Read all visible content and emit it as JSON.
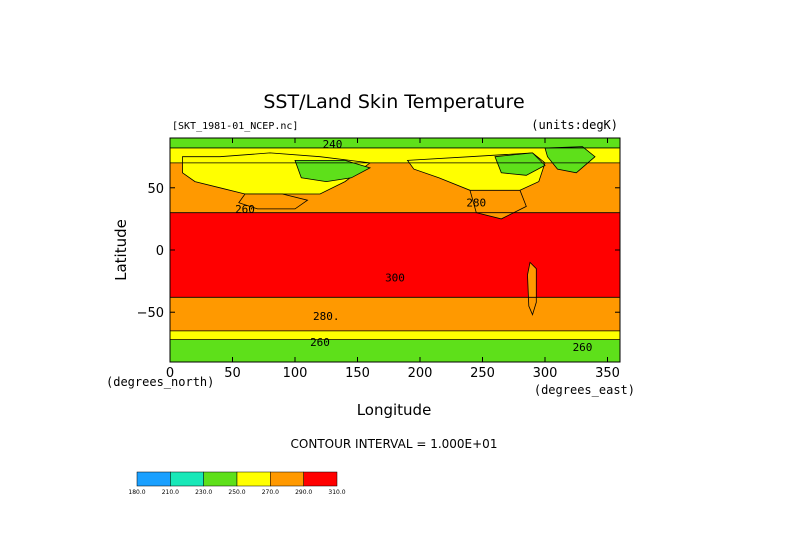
{
  "chart_data": {
    "type": "heatmap",
    "title": "SST/Land Skin Temperature",
    "file_label": "[SKT_1981-01_NCEP.nc]",
    "units_label": "(units:degK)",
    "xlabel": "Longitude",
    "ylabel": "Latitude",
    "x_unit_label": "(degrees_east)",
    "y_unit_label": "(degrees_north)",
    "xlim": [
      0,
      360
    ],
    "ylim": [
      -90,
      90
    ],
    "x_ticks": [
      {
        "value": 0,
        "label": "0"
      },
      {
        "value": 50,
        "label": "50"
      },
      {
        "value": 100,
        "label": "100"
      },
      {
        "value": 150,
        "label": "150"
      },
      {
        "value": 200,
        "label": "200"
      },
      {
        "value": 250,
        "label": "250"
      },
      {
        "value": 300,
        "label": "300"
      },
      {
        "value": 350,
        "label": "350"
      }
    ],
    "y_ticks": [
      {
        "value": 50,
        "label": "50"
      },
      {
        "value": 0,
        "label": "0"
      },
      {
        "value": -50,
        "label": "−50"
      }
    ],
    "contour_interval_label": "CONTOUR INTERVAL = 1.000E+01",
    "colorbar": {
      "levels": [
        "180.0",
        "210.0",
        "230.0",
        "250.0",
        "270.0",
        "290.0",
        "310.0"
      ],
      "colors": [
        "#1aa0ff",
        "#18e8b8",
        "#5ee01a",
        "#ffff00",
        "#ff9900",
        "#ff0000"
      ]
    },
    "latitude_bands": [
      {
        "lat_top": 90,
        "lat_bottom": 82,
        "color": "#5ee01a"
      },
      {
        "lat_top": 82,
        "lat_bottom": 70,
        "color": "#ffff00"
      },
      {
        "lat_top": 70,
        "lat_bottom": 30,
        "color": "#ff9900"
      },
      {
        "lat_top": 30,
        "lat_bottom": -38,
        "color": "#ff0000"
      },
      {
        "lat_top": -38,
        "lat_bottom": -65,
        "color": "#ff9900"
      },
      {
        "lat_top": -65,
        "lat_bottom": -72,
        "color": "#ffff00"
      },
      {
        "lat_top": -72,
        "lat_bottom": -90,
        "color": "#5ee01a"
      }
    ],
    "regions": [
      {
        "name": "eurasia-cold",
        "color": "#ffff00",
        "polygon": [
          [
            10,
            75
          ],
          [
            40,
            75
          ],
          [
            80,
            78
          ],
          [
            120,
            75
          ],
          [
            160,
            70
          ],
          [
            140,
            55
          ],
          [
            120,
            45
          ],
          [
            90,
            45
          ],
          [
            60,
            45
          ],
          [
            40,
            50
          ],
          [
            20,
            55
          ],
          [
            10,
            62
          ]
        ]
      },
      {
        "name": "siberia-colder",
        "color": "#5ee01a",
        "polygon": [
          [
            100,
            72
          ],
          [
            140,
            72
          ],
          [
            160,
            66
          ],
          [
            145,
            58
          ],
          [
            125,
            55
          ],
          [
            105,
            58
          ]
        ]
      },
      {
        "name": "central-asia-warm",
        "color": "#ff9900",
        "polygon": [
          [
            60,
            45
          ],
          [
            90,
            45
          ],
          [
            110,
            40
          ],
          [
            100,
            33
          ],
          [
            70,
            33
          ],
          [
            55,
            38
          ]
        ]
      },
      {
        "name": "north-america-cold",
        "color": "#ffff00",
        "polygon": [
          [
            190,
            72
          ],
          [
            240,
            75
          ],
          [
            290,
            78
          ],
          [
            300,
            70
          ],
          [
            295,
            55
          ],
          [
            280,
            48
          ],
          [
            260,
            45
          ],
          [
            240,
            48
          ],
          [
            215,
            58
          ],
          [
            195,
            65
          ]
        ]
      },
      {
        "name": "north-america-colder",
        "color": "#5ee01a",
        "polygon": [
          [
            260,
            75
          ],
          [
            290,
            78
          ],
          [
            300,
            68
          ],
          [
            285,
            60
          ],
          [
            265,
            62
          ]
        ]
      },
      {
        "name": "greenland",
        "color": "#5ee01a",
        "polygon": [
          [
            300,
            82
          ],
          [
            330,
            83
          ],
          [
            340,
            75
          ],
          [
            325,
            62
          ],
          [
            310,
            65
          ],
          [
            302,
            75
          ]
        ]
      },
      {
        "name": "n-america-warm",
        "color": "#ff9900",
        "polygon": [
          [
            240,
            48
          ],
          [
            280,
            48
          ],
          [
            285,
            35
          ],
          [
            265,
            25
          ],
          [
            245,
            30
          ]
        ]
      },
      {
        "name": "andes",
        "color": "#ff9900",
        "polygon": [
          [
            288,
            -10
          ],
          [
            293,
            -15
          ],
          [
            293,
            -42
          ],
          [
            290,
            -52
          ],
          [
            287,
            -45
          ],
          [
            286,
            -20
          ]
        ]
      }
    ],
    "contour_labels": [
      {
        "text": "240",
        "lon": 130,
        "lat": 85
      },
      {
        "text": "260",
        "lon": 60,
        "lat": 33
      },
      {
        "text": "280",
        "lon": 245,
        "lat": 38
      },
      {
        "text": "300",
        "lon": 180,
        "lat": -22
      },
      {
        "text": "280.",
        "lon": 125,
        "lat": -53
      },
      {
        "text": "260",
        "lon": 120,
        "lat": -74
      },
      {
        "text": "260",
        "lon": 330,
        "lat": -78
      }
    ]
  }
}
